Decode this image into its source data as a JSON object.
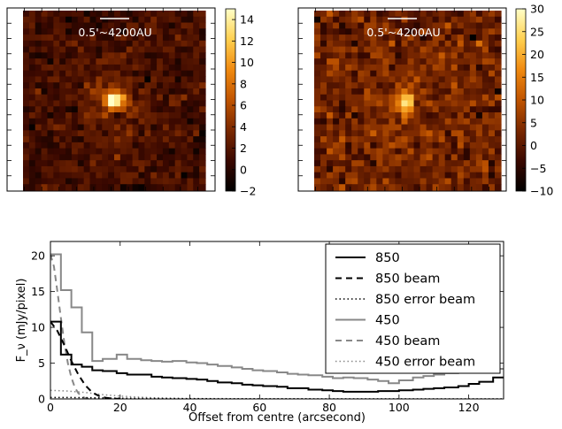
{
  "chart_data": [
    {
      "type": "heatmap",
      "panel": "left",
      "annotation": "0.5'~4200AU",
      "colorbar": {
        "min": -2,
        "max": 15,
        "ticks": [
          "−2",
          "0",
          "2",
          "4",
          "6",
          "8",
          "10",
          "12",
          "14"
        ],
        "tick_values": [
          -2,
          0,
          2,
          4,
          6,
          8,
          10,
          12,
          14
        ],
        "colormap": [
          "#000000",
          "#3a0800",
          "#7a2800",
          "#c05400",
          "#f08a10",
          "#ffd050",
          "#ffffc8"
        ]
      },
      "source_peak": 14,
      "background_level": 1.2,
      "grid_cells": 30
    },
    {
      "type": "heatmap",
      "panel": "right",
      "annotation": "0.5'~4200AU",
      "colorbar": {
        "min": -10,
        "max": 30,
        "ticks": [
          "−10",
          "−5",
          "0",
          "5",
          "10",
          "15",
          "20",
          "25",
          "30"
        ],
        "tick_values": [
          -10,
          -5,
          0,
          5,
          10,
          15,
          20,
          25,
          30
        ],
        "colormap": [
          "#000000",
          "#3a0800",
          "#7a2800",
          "#c05400",
          "#f08a10",
          "#ffd050",
          "#ffffc8"
        ]
      },
      "source_peak": 25,
      "background_level": 2,
      "grid_cells": 30
    },
    {
      "type": "line",
      "xlabel": "Offset from centre (arcsecond)",
      "ylabel": "F_ν (mJy/pixel)",
      "xlim": [
        0,
        130
      ],
      "ylim": [
        0,
        22
      ],
      "xticks": [
        0,
        20,
        40,
        60,
        80,
        100,
        120
      ],
      "yticks": [
        0,
        5,
        10,
        15,
        20
      ],
      "legend_position": "top-right",
      "series": [
        {
          "name": "850",
          "style": "step",
          "color": "#000000",
          "dash": "solid",
          "width": 2,
          "x": [
            0,
            3,
            6,
            9,
            12,
            15,
            19,
            22,
            26,
            29,
            32,
            35,
            39,
            42,
            45,
            48,
            52,
            55,
            58,
            61,
            65,
            68,
            71,
            74,
            78,
            81,
            84,
            87,
            91,
            94,
            97,
            100,
            104,
            107,
            110,
            113,
            117,
            120,
            123,
            127,
            130
          ],
          "y": [
            10.8,
            6.2,
            4.8,
            4.5,
            4.0,
            3.9,
            3.6,
            3.4,
            3.4,
            3.1,
            3.0,
            2.9,
            2.8,
            2.7,
            2.5,
            2.3,
            2.2,
            2.0,
            1.9,
            1.8,
            1.7,
            1.5,
            1.5,
            1.3,
            1.2,
            1.1,
            1.0,
            1.0,
            1.0,
            1.1,
            1.1,
            1.2,
            1.3,
            1.4,
            1.5,
            1.6,
            1.8,
            2.1,
            2.4,
            3.0,
            3.4
          ]
        },
        {
          "name": "850 beam",
          "style": "line",
          "color": "#000000",
          "dash": "7,5",
          "width": 2,
          "x": [
            0,
            2,
            4,
            6,
            8,
            10,
            12,
            14,
            16,
            18,
            20
          ],
          "y": [
            10.8,
            9.5,
            7.5,
            5.3,
            3.4,
            1.9,
            0.9,
            0.4,
            0.15,
            0.05,
            0
          ]
        },
        {
          "name": "850 error beam",
          "style": "line",
          "color": "#000000",
          "dash": "1.5,3",
          "width": 1.5,
          "x": [
            0,
            5,
            10,
            15,
            20,
            30,
            40,
            60,
            130
          ],
          "y": [
            0.2,
            0.2,
            0.18,
            0.14,
            0.1,
            0.06,
            0.03,
            0.01,
            0
          ]
        },
        {
          "name": "450",
          "style": "step",
          "color": "#888888",
          "dash": "solid",
          "width": 2,
          "x": [
            0,
            3,
            6,
            9,
            12,
            15,
            19,
            22,
            26,
            29,
            32,
            35,
            39,
            42,
            45,
            48,
            52,
            55,
            58,
            61,
            65,
            68,
            71,
            74,
            78,
            81,
            84,
            87,
            91,
            94,
            97,
            100,
            104,
            107,
            110,
            113,
            117,
            120,
            123,
            127,
            130
          ],
          "y": [
            20.2,
            15.2,
            12.8,
            9.3,
            5.3,
            5.6,
            6.2,
            5.6,
            5.4,
            5.3,
            5.2,
            5.3,
            5.1,
            5.0,
            4.8,
            4.6,
            4.4,
            4.2,
            4.0,
            3.9,
            3.7,
            3.5,
            3.4,
            3.3,
            3.1,
            2.9,
            3.0,
            2.9,
            2.7,
            2.5,
            2.2,
            2.6,
            3.0,
            3.2,
            3.4,
            3.6,
            3.7,
            3.8,
            4.1,
            4.2,
            4.4
          ]
        },
        {
          "name": "450 beam",
          "style": "line",
          "color": "#888888",
          "dash": "7,5",
          "width": 2,
          "x": [
            0,
            1,
            2,
            3,
            4,
            5,
            6,
            7,
            8,
            9,
            10,
            11,
            12
          ],
          "y": [
            20.2,
            18.5,
            15.0,
            11.3,
            7.8,
            5.0,
            3.0,
            1.6,
            0.8,
            0.35,
            0.12,
            0.04,
            0
          ]
        },
        {
          "name": "450 error beam",
          "style": "line",
          "color": "#888888",
          "dash": "1.5,3",
          "width": 1.5,
          "x": [
            0,
            5,
            10,
            15,
            20,
            25,
            30,
            40,
            60,
            130
          ],
          "y": [
            1.2,
            1.1,
            0.9,
            0.6,
            0.4,
            0.25,
            0.15,
            0.06,
            0.02,
            0
          ]
        }
      ]
    }
  ]
}
